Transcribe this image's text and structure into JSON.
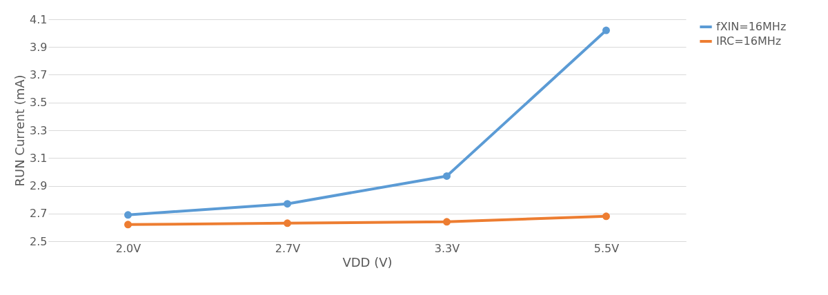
{
  "chart_data": {
    "type": "line",
    "xlabel": "VDD (V)",
    "ylabel": "RUN Current (mA)",
    "categories": [
      "2.0V",
      "2.7V",
      "3.3V",
      "5.5V"
    ],
    "series": [
      {
        "name": "fXIN=16MHz",
        "color": "#5b9bd5",
        "values": [
          2.69,
          2.77,
          2.97,
          4.02
        ]
      },
      {
        "name": "IRC=16MHz",
        "color": "#ed7d31",
        "values": [
          2.62,
          2.63,
          2.64,
          2.68
        ]
      }
    ],
    "ylim": [
      2.5,
      4.1
    ],
    "yticks": [
      2.5,
      2.7,
      2.9,
      3.1,
      3.3,
      3.5,
      3.7,
      3.9,
      4.1
    ],
    "grid": "y",
    "legend": "right",
    "marker": "circle",
    "line_style": "solid"
  }
}
